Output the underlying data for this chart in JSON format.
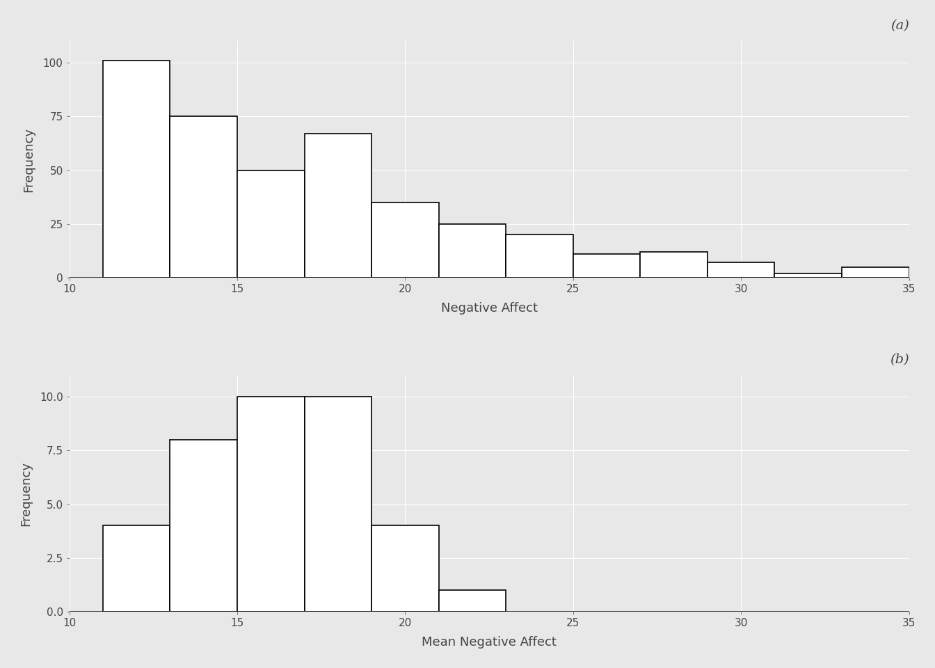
{
  "plot_a": {
    "bin_edges": [
      11,
      13,
      15,
      17,
      19,
      21,
      23,
      25,
      27,
      29,
      31,
      33,
      35
    ],
    "frequencies": [
      101,
      75,
      50,
      67,
      35,
      25,
      20,
      11,
      12,
      7,
      2,
      5
    ],
    "xlabel": "Negative Affect",
    "ylabel": "Frequency",
    "label": "(a)",
    "xlim": [
      10,
      35
    ],
    "ylim": [
      0,
      110
    ],
    "yticks": [
      0,
      25,
      50,
      75,
      100
    ],
    "xticks": [
      10,
      15,
      20,
      25,
      30,
      35
    ]
  },
  "plot_b": {
    "bin_edges": [
      11,
      13,
      15,
      17,
      19,
      21,
      23
    ],
    "frequencies": [
      4,
      8,
      10,
      10,
      4,
      1
    ],
    "xlabel": "Mean Negative Affect",
    "ylabel": "Frequency",
    "label": "(b)",
    "xlim": [
      10,
      35
    ],
    "ylim": [
      0,
      11
    ],
    "yticks": [
      0.0,
      2.5,
      5.0,
      7.5,
      10.0
    ],
    "xticks": [
      10,
      15,
      20,
      25,
      30,
      35
    ]
  },
  "background_color": "#E8E8E8",
  "bar_facecolor": "#FFFFFF",
  "bar_edgecolor": "#000000",
  "grid_color": "#FFFFFF",
  "text_color": "#444444",
  "axis_label_fontsize": 13,
  "tick_fontsize": 11,
  "panel_label_fontsize": 14,
  "label_style": "italic",
  "bar_linewidth": 1.2
}
